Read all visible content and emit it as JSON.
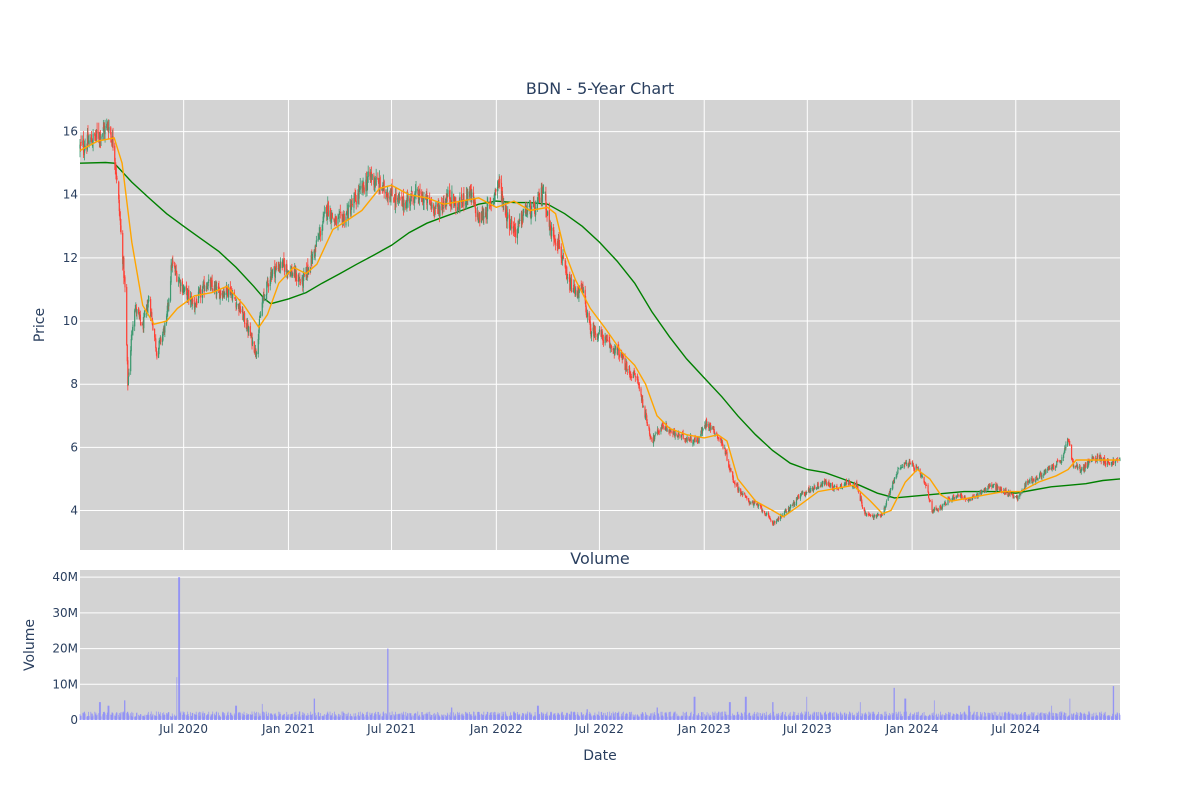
{
  "chart_data": [
    {
      "type": "candlestick",
      "title": "BDN - 5-Year Chart",
      "ylabel": "Price",
      "ylim": [
        2.75,
        17
      ],
      "yticks": [
        4,
        6,
        8,
        10,
        12,
        14,
        16
      ],
      "xlim": [
        "2020-01-01",
        "2024-12-31"
      ],
      "xtick_labels": [
        "Jul 2020",
        "Jan 2021",
        "Jul 2021",
        "Jan 2022",
        "Jul 2022",
        "Jan 2023",
        "Jul 2023",
        "Jan 2024",
        "Jul 2024"
      ],
      "xtick_dates": [
        "2020-07-01",
        "2021-01-01",
        "2021-07-01",
        "2022-01-01",
        "2022-07-01",
        "2023-01-01",
        "2023-07-01",
        "2024-01-01",
        "2024-07-01"
      ],
      "grid": true,
      "colors": {
        "increasing": "#3d9970",
        "decreasing": "#ff4136",
        "short_ma": "#ffa500",
        "long_ma": "#008000",
        "plot_bg": "#d3d3d3"
      },
      "price_path": [
        [
          "2020-01-01",
          15.5
        ],
        [
          "2020-01-20",
          15.7
        ],
        [
          "2020-02-10",
          16.0
        ],
        [
          "2020-02-20",
          16.2
        ],
        [
          "2020-03-01",
          15.5
        ],
        [
          "2020-03-10",
          13.5
        ],
        [
          "2020-03-20",
          11.0
        ],
        [
          "2020-03-25",
          8.0
        ],
        [
          "2020-04-05",
          10.5
        ],
        [
          "2020-04-20",
          9.8
        ],
        [
          "2020-05-01",
          10.7
        ],
        [
          "2020-05-15",
          9.0
        ],
        [
          "2020-06-01",
          10.0
        ],
        [
          "2020-06-10",
          11.8
        ],
        [
          "2020-07-01",
          11.0
        ],
        [
          "2020-07-20",
          10.5
        ],
        [
          "2020-08-10",
          11.2
        ],
        [
          "2020-09-01",
          10.9
        ],
        [
          "2020-09-20",
          11.0
        ],
        [
          "2020-10-10",
          10.3
        ],
        [
          "2020-10-25",
          9.6
        ],
        [
          "2020-11-05",
          9.0
        ],
        [
          "2020-11-15",
          10.5
        ],
        [
          "2020-12-01",
          11.5
        ],
        [
          "2020-12-20",
          11.8
        ],
        [
          "2021-01-10",
          11.5
        ],
        [
          "2021-01-25",
          11.2
        ],
        [
          "2021-02-10",
          11.9
        ],
        [
          "2021-03-01",
          13.0
        ],
        [
          "2021-03-10",
          13.6
        ],
        [
          "2021-03-25",
          13.1
        ],
        [
          "2021-04-10",
          13.3
        ],
        [
          "2021-05-01",
          13.9
        ],
        [
          "2021-05-25",
          14.6
        ],
        [
          "2021-06-15",
          14.2
        ],
        [
          "2021-07-01",
          14.0
        ],
        [
          "2021-07-20",
          13.7
        ],
        [
          "2021-08-10",
          14.0
        ],
        [
          "2021-09-01",
          13.8
        ],
        [
          "2021-09-20",
          13.5
        ],
        [
          "2021-10-10",
          14.0
        ],
        [
          "2021-10-25",
          13.6
        ],
        [
          "2021-11-15",
          14.1
        ],
        [
          "2021-12-01",
          13.2
        ],
        [
          "2021-12-20",
          13.6
        ],
        [
          "2022-01-05",
          14.4
        ],
        [
          "2022-01-20",
          13.3
        ],
        [
          "2022-02-05",
          12.8
        ],
        [
          "2022-02-20",
          13.5
        ],
        [
          "2022-03-10",
          13.5
        ],
        [
          "2022-03-25",
          14.2
        ],
        [
          "2022-04-05",
          12.9
        ],
        [
          "2022-04-20",
          12.5
        ],
        [
          "2022-05-05",
          11.3
        ],
        [
          "2022-05-20",
          10.9
        ],
        [
          "2022-06-01",
          11.0
        ],
        [
          "2022-06-15",
          9.7
        ],
        [
          "2022-07-01",
          9.6
        ],
        [
          "2022-07-20",
          9.2
        ],
        [
          "2022-08-05",
          9.0
        ],
        [
          "2022-08-20",
          8.4
        ],
        [
          "2022-09-05",
          8.2
        ],
        [
          "2022-09-20",
          7.0
        ],
        [
          "2022-10-01",
          6.2
        ],
        [
          "2022-10-20",
          6.7
        ],
        [
          "2022-11-10",
          6.4
        ],
        [
          "2022-12-01",
          6.3
        ],
        [
          "2022-12-20",
          6.2
        ],
        [
          "2023-01-05",
          6.8
        ],
        [
          "2023-01-20",
          6.5
        ],
        [
          "2023-02-05",
          6.0
        ],
        [
          "2023-02-20",
          5.0
        ],
        [
          "2023-03-05",
          4.6
        ],
        [
          "2023-03-20",
          4.3
        ],
        [
          "2023-04-10",
          4.1
        ],
        [
          "2023-05-01",
          3.6
        ],
        [
          "2023-05-15",
          3.8
        ],
        [
          "2023-06-01",
          4.1
        ],
        [
          "2023-06-20",
          4.5
        ],
        [
          "2023-07-10",
          4.7
        ],
        [
          "2023-08-01",
          4.9
        ],
        [
          "2023-08-20",
          4.7
        ],
        [
          "2023-09-10",
          4.9
        ],
        [
          "2023-09-25",
          4.8
        ],
        [
          "2023-10-10",
          3.9
        ],
        [
          "2023-10-25",
          3.8
        ],
        [
          "2023-11-10",
          3.9
        ],
        [
          "2023-11-25",
          4.7
        ],
        [
          "2023-12-10",
          5.4
        ],
        [
          "2023-12-25",
          5.5
        ],
        [
          "2024-01-10",
          5.3
        ],
        [
          "2024-01-25",
          4.8
        ],
        [
          "2024-02-05",
          4.0
        ],
        [
          "2024-02-20",
          4.1
        ],
        [
          "2024-03-10",
          4.4
        ],
        [
          "2024-03-25",
          4.5
        ],
        [
          "2024-04-10",
          4.3
        ],
        [
          "2024-05-01",
          4.6
        ],
        [
          "2024-05-20",
          4.8
        ],
        [
          "2024-06-10",
          4.6
        ],
        [
          "2024-06-25",
          4.5
        ],
        [
          "2024-07-05",
          4.4
        ],
        [
          "2024-07-20",
          4.9
        ],
        [
          "2024-08-05",
          5.0
        ],
        [
          "2024-08-20",
          5.2
        ],
        [
          "2024-09-05",
          5.4
        ],
        [
          "2024-09-20",
          5.6
        ],
        [
          "2024-10-01",
          6.3
        ],
        [
          "2024-10-10",
          5.4
        ],
        [
          "2024-10-25",
          5.3
        ],
        [
          "2024-11-10",
          5.6
        ],
        [
          "2024-11-25",
          5.7
        ],
        [
          "2024-12-10",
          5.5
        ],
        [
          "2024-12-31",
          5.6
        ]
      ],
      "short_ma": [
        [
          "2020-01-01",
          15.4
        ],
        [
          "2020-02-01",
          15.7
        ],
        [
          "2020-03-01",
          15.8
        ],
        [
          "2020-03-15",
          15.0
        ],
        [
          "2020-04-01",
          12.5
        ],
        [
          "2020-04-20",
          10.5
        ],
        [
          "2020-05-10",
          9.9
        ],
        [
          "2020-06-01",
          10.0
        ],
        [
          "2020-06-20",
          10.4
        ],
        [
          "2020-07-20",
          10.8
        ],
        [
          "2020-08-20",
          10.9
        ],
        [
          "2020-09-15",
          11.1
        ],
        [
          "2020-10-15",
          10.5
        ],
        [
          "2020-11-10",
          9.8
        ],
        [
          "2020-11-25",
          10.2
        ],
        [
          "2020-12-15",
          11.2
        ],
        [
          "2021-01-10",
          11.7
        ],
        [
          "2021-02-01",
          11.5
        ],
        [
          "2021-02-20",
          11.8
        ],
        [
          "2021-03-20",
          12.9
        ],
        [
          "2021-04-15",
          13.2
        ],
        [
          "2021-05-10",
          13.5
        ],
        [
          "2021-06-10",
          14.2
        ],
        [
          "2021-07-01",
          14.3
        ],
        [
          "2021-08-01",
          14.0
        ],
        [
          "2021-09-01",
          13.9
        ],
        [
          "2021-10-01",
          13.7
        ],
        [
          "2021-11-01",
          13.8
        ],
        [
          "2021-12-01",
          13.9
        ],
        [
          "2022-01-01",
          13.6
        ],
        [
          "2022-02-01",
          13.8
        ],
        [
          "2022-03-01",
          13.5
        ],
        [
          "2022-04-01",
          13.6
        ],
        [
          "2022-04-15",
          13.4
        ],
        [
          "2022-05-01",
          12.2
        ],
        [
          "2022-05-20",
          11.3
        ],
        [
          "2022-06-15",
          10.4
        ],
        [
          "2022-07-10",
          9.8
        ],
        [
          "2022-08-10",
          9.0
        ],
        [
          "2022-09-01",
          8.6
        ],
        [
          "2022-09-20",
          8.0
        ],
        [
          "2022-10-10",
          7.0
        ],
        [
          "2022-11-01",
          6.6
        ],
        [
          "2022-12-01",
          6.4
        ],
        [
          "2023-01-01",
          6.3
        ],
        [
          "2023-01-25",
          6.4
        ],
        [
          "2023-02-10",
          6.2
        ],
        [
          "2023-03-01",
          5.0
        ],
        [
          "2023-04-01",
          4.3
        ],
        [
          "2023-05-01",
          4.0
        ],
        [
          "2023-05-20",
          3.8
        ],
        [
          "2023-06-20",
          4.2
        ],
        [
          "2023-07-20",
          4.6
        ],
        [
          "2023-08-20",
          4.7
        ],
        [
          "2023-09-20",
          4.8
        ],
        [
          "2023-10-20",
          4.3
        ],
        [
          "2023-11-10",
          3.9
        ],
        [
          "2023-11-25",
          4.0
        ],
        [
          "2023-12-20",
          4.9
        ],
        [
          "2024-01-10",
          5.3
        ],
        [
          "2024-02-01",
          5.0
        ],
        [
          "2024-02-20",
          4.5
        ],
        [
          "2024-03-10",
          4.3
        ],
        [
          "2024-04-10",
          4.4
        ],
        [
          "2024-05-10",
          4.5
        ],
        [
          "2024-06-10",
          4.6
        ],
        [
          "2024-07-10",
          4.6
        ],
        [
          "2024-08-10",
          4.9
        ],
        [
          "2024-09-10",
          5.1
        ],
        [
          "2024-10-01",
          5.3
        ],
        [
          "2024-10-15",
          5.6
        ],
        [
          "2024-11-10",
          5.6
        ],
        [
          "2024-12-31",
          5.6
        ]
      ],
      "long_ma": [
        [
          "2020-01-01",
          15.0
        ],
        [
          "2020-02-15",
          15.02
        ],
        [
          "2020-03-01",
          15.0
        ],
        [
          "2020-04-01",
          14.4
        ],
        [
          "2020-05-01",
          13.9
        ],
        [
          "2020-06-01",
          13.4
        ],
        [
          "2020-07-01",
          13.0
        ],
        [
          "2020-08-01",
          12.6
        ],
        [
          "2020-09-01",
          12.2
        ],
        [
          "2020-10-01",
          11.7
        ],
        [
          "2020-11-01",
          11.1
        ],
        [
          "2020-11-20",
          10.7
        ],
        [
          "2020-12-01",
          10.55
        ],
        [
          "2021-01-01",
          10.7
        ],
        [
          "2021-02-01",
          10.9
        ],
        [
          "2021-03-01",
          11.2
        ],
        [
          "2021-04-01",
          11.5
        ],
        [
          "2021-05-01",
          11.8
        ],
        [
          "2021-06-01",
          12.1
        ],
        [
          "2021-07-01",
          12.4
        ],
        [
          "2021-08-01",
          12.8
        ],
        [
          "2021-09-01",
          13.1
        ],
        [
          "2021-10-01",
          13.3
        ],
        [
          "2021-11-01",
          13.5
        ],
        [
          "2021-12-01",
          13.7
        ],
        [
          "2022-01-01",
          13.8
        ],
        [
          "2022-02-01",
          13.75
        ],
        [
          "2022-03-01",
          13.75
        ],
        [
          "2022-04-01",
          13.7
        ],
        [
          "2022-05-01",
          13.4
        ],
        [
          "2022-06-01",
          13.0
        ],
        [
          "2022-07-01",
          12.5
        ],
        [
          "2022-08-01",
          11.9
        ],
        [
          "2022-09-01",
          11.2
        ],
        [
          "2022-10-01",
          10.3
        ],
        [
          "2022-11-01",
          9.5
        ],
        [
          "2022-12-01",
          8.8
        ],
        [
          "2023-01-01",
          8.2
        ],
        [
          "2023-02-01",
          7.6
        ],
        [
          "2023-03-01",
          7.0
        ],
        [
          "2023-04-01",
          6.4
        ],
        [
          "2023-05-01",
          5.9
        ],
        [
          "2023-06-01",
          5.5
        ],
        [
          "2023-07-01",
          5.3
        ],
        [
          "2023-08-01",
          5.2
        ],
        [
          "2023-09-01",
          5.0
        ],
        [
          "2023-10-01",
          4.8
        ],
        [
          "2023-11-01",
          4.55
        ],
        [
          "2023-12-01",
          4.4
        ],
        [
          "2024-01-01",
          4.45
        ],
        [
          "2024-02-01",
          4.5
        ],
        [
          "2024-03-01",
          4.55
        ],
        [
          "2024-04-01",
          4.6
        ],
        [
          "2024-05-01",
          4.6
        ],
        [
          "2024-06-01",
          4.6
        ],
        [
          "2024-07-01",
          4.55
        ],
        [
          "2024-08-01",
          4.65
        ],
        [
          "2024-09-01",
          4.75
        ],
        [
          "2024-10-01",
          4.8
        ],
        [
          "2024-11-01",
          4.85
        ],
        [
          "2024-12-01",
          4.95
        ],
        [
          "2024-12-31",
          5.0
        ]
      ]
    },
    {
      "type": "bar",
      "title": "Volume",
      "xlabel": "Date",
      "ylabel": "Volume",
      "ylim": [
        0,
        42000000
      ],
      "yticks": [
        0,
        10000000,
        20000000,
        30000000,
        40000000
      ],
      "ytick_labels": [
        "0",
        "10M",
        "20M",
        "30M",
        "40M"
      ],
      "xlim": [
        "2020-01-01",
        "2024-12-31"
      ],
      "xtick_labels": [
        "Jul 2020",
        "Jan 2021",
        "Jul 2021",
        "Jan 2022",
        "Jul 2022",
        "Jan 2023",
        "Jul 2023",
        "Jan 2024",
        "Jul 2024"
      ],
      "xtick_dates": [
        "2020-07-01",
        "2021-01-01",
        "2021-07-01",
        "2022-01-01",
        "2022-07-01",
        "2023-01-01",
        "2023-07-01",
        "2024-01-01",
        "2024-07-01"
      ],
      "grid": true,
      "colors": {
        "bar": "#8080ff",
        "plot_bg": "#d3d3d3"
      },
      "spikes": [
        [
          "2020-02-05",
          5000000
        ],
        [
          "2020-02-20",
          4000000
        ],
        [
          "2020-03-20",
          5500000
        ],
        [
          "2020-06-20",
          12000000
        ],
        [
          "2020-06-23",
          40000000
        ],
        [
          "2020-10-01",
          4000000
        ],
        [
          "2020-11-15",
          4500000
        ],
        [
          "2021-02-15",
          6000000
        ],
        [
          "2021-06-25",
          20000000
        ],
        [
          "2021-10-15",
          3500000
        ],
        [
          "2022-03-15",
          4000000
        ],
        [
          "2022-06-10",
          3000000
        ],
        [
          "2022-10-10",
          3500000
        ],
        [
          "2022-12-15",
          6500000
        ],
        [
          "2023-02-15",
          5000000
        ],
        [
          "2023-03-15",
          6500000
        ],
        [
          "2023-05-01",
          5000000
        ],
        [
          "2023-07-01",
          6500000
        ],
        [
          "2023-10-01",
          5000000
        ],
        [
          "2023-12-01",
          9000000
        ],
        [
          "2023-12-20",
          6000000
        ],
        [
          "2024-02-10",
          5500000
        ],
        [
          "2024-04-10",
          4000000
        ],
        [
          "2024-09-01",
          4000000
        ],
        [
          "2024-10-05",
          6000000
        ],
        [
          "2024-12-20",
          9500000
        ]
      ]
    }
  ]
}
